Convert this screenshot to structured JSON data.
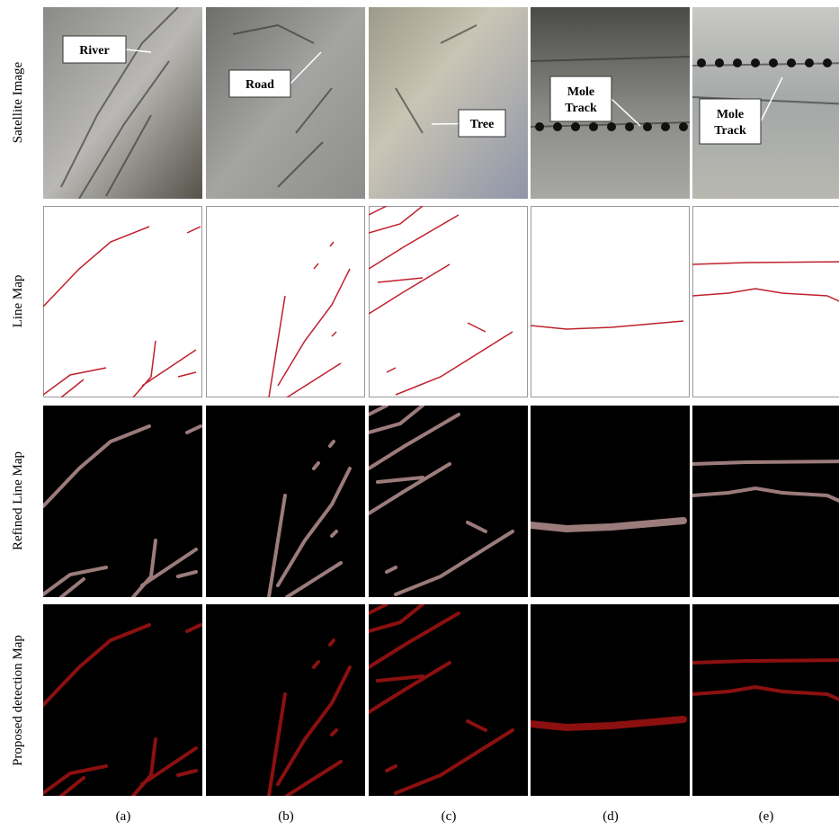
{
  "rows": [
    "Satellite Image",
    "Line Map",
    "Refined Line Map",
    "Proposed detection Map"
  ],
  "columns": [
    "(a)",
    "(b)",
    "(c)",
    "(d)",
    "(e)"
  ],
  "annotations": [
    "River",
    "Road",
    "Tree",
    "Mole Track",
    "Mole Track"
  ]
}
